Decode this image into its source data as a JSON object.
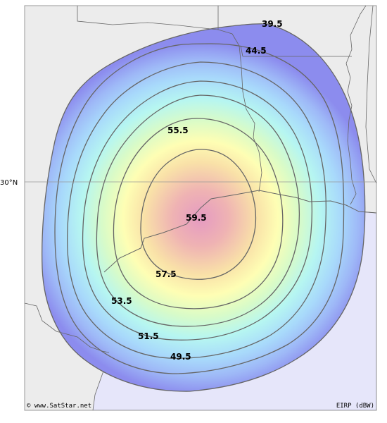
{
  "map": {
    "latitude_label": "30°N",
    "contour_labels": [
      "39.5",
      "44.5",
      "55.5",
      "59.5",
      "57.5",
      "53.5",
      "51.5",
      "49.5"
    ],
    "credit": "© www.SatStar.net",
    "units": "EIRP (dBW)"
  },
  "colors": {
    "land": "#ececec",
    "sea": "#e6e6fa",
    "outer_beam": "#8c8cee",
    "beam_core": "#e59ac2",
    "contour_line": "#555555",
    "border": "#666666"
  }
}
